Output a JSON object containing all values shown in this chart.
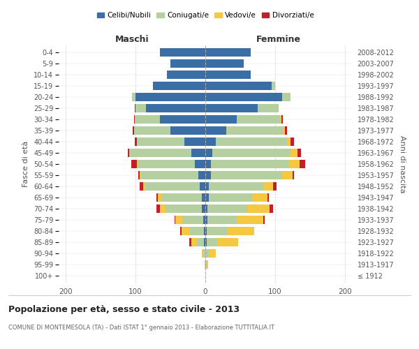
{
  "age_groups": [
    "100+",
    "95-99",
    "90-94",
    "85-89",
    "80-84",
    "75-79",
    "70-74",
    "65-69",
    "60-64",
    "55-59",
    "50-54",
    "45-49",
    "40-44",
    "35-39",
    "30-34",
    "25-29",
    "20-24",
    "15-19",
    "10-14",
    "5-9",
    "0-4"
  ],
  "birth_years": [
    "≤ 1912",
    "1913-1917",
    "1918-1922",
    "1923-1927",
    "1928-1932",
    "1933-1937",
    "1938-1942",
    "1943-1947",
    "1948-1952",
    "1953-1957",
    "1958-1962",
    "1963-1967",
    "1968-1972",
    "1973-1977",
    "1978-1982",
    "1983-1987",
    "1988-1992",
    "1993-1997",
    "1998-2002",
    "2003-2007",
    "2008-2012"
  ],
  "colors": {
    "celibe": "#3a6ea5",
    "coniugato": "#b5cfa0",
    "vedovo": "#f5c842",
    "divorziato": "#c0202a"
  },
  "maschi": {
    "celibe": [
      0,
      0,
      0,
      2,
      2,
      3,
      5,
      5,
      8,
      10,
      15,
      20,
      30,
      50,
      65,
      85,
      100,
      75,
      55,
      50,
      65
    ],
    "coniugato": [
      0,
      0,
      2,
      10,
      20,
      30,
      52,
      58,
      78,
      82,
      82,
      88,
      68,
      52,
      36,
      15,
      5,
      0,
      0,
      0,
      0
    ],
    "vedovo": [
      0,
      1,
      3,
      8,
      12,
      10,
      8,
      5,
      3,
      2,
      1,
      1,
      0,
      0,
      0,
      0,
      0,
      0,
      0,
      0,
      0
    ],
    "divorziato": [
      0,
      0,
      0,
      3,
      2,
      1,
      5,
      2,
      5,
      2,
      8,
      2,
      3,
      2,
      1,
      1,
      0,
      0,
      0,
      0,
      0
    ]
  },
  "femmine": {
    "nubile": [
      0,
      0,
      0,
      2,
      2,
      3,
      3,
      5,
      5,
      8,
      8,
      10,
      15,
      30,
      45,
      75,
      110,
      95,
      65,
      55,
      65
    ],
    "coniugata": [
      0,
      2,
      5,
      15,
      30,
      42,
      57,
      62,
      78,
      102,
      112,
      112,
      102,
      82,
      62,
      30,
      12,
      5,
      0,
      0,
      0
    ],
    "vedova": [
      0,
      2,
      10,
      30,
      38,
      38,
      32,
      22,
      14,
      15,
      15,
      10,
      5,
      2,
      2,
      0,
      0,
      0,
      0,
      0,
      0
    ],
    "divorziata": [
      0,
      0,
      0,
      0,
      0,
      2,
      5,
      2,
      5,
      2,
      8,
      5,
      5,
      3,
      2,
      0,
      0,
      0,
      0,
      0,
      0
    ]
  },
  "xlim": 210,
  "title": "Popolazione per età, sesso e stato civile - 2013",
  "subtitle": "COMUNE DI MONTEMESOLA (TA) - Dati ISTAT 1° gennaio 2013 - Elaborazione TUTTITALIA.IT",
  "ylabel_left": "Fasce di età",
  "ylabel_right": "Anni di nascita",
  "xlabel_maschi": "Maschi",
  "xlabel_femmine": "Femmine",
  "legend_labels": [
    "Celibi/Nubili",
    "Coniugati/e",
    "Vedovi/e",
    "Divorziati/e"
  ],
  "bar_height": 0.75
}
